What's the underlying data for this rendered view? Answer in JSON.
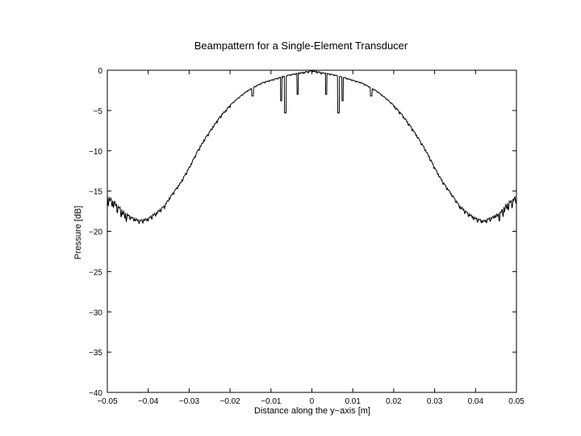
{
  "chart_data": {
    "type": "line",
    "title": "Beampattern for a Single-Element Transducer",
    "xlabel": "Distance along the y−axis [m]",
    "ylabel": "Pressure [dB]",
    "xlim": [
      -0.05,
      0.05
    ],
    "ylim": [
      -40,
      0
    ],
    "xticks": [
      -0.05,
      -0.04,
      -0.03,
      -0.02,
      -0.01,
      0,
      0.01,
      0.02,
      0.03,
      0.04,
      0.05
    ],
    "xtick_labels": [
      "−0.05",
      "−0.04",
      "−0.03",
      "−0.02",
      "−0.01",
      "0",
      "0.01",
      "0.02",
      "0.03",
      "0.04",
      "0.05"
    ],
    "yticks": [
      0,
      -5,
      -10,
      -15,
      -20,
      -25,
      -30,
      -35,
      -40
    ],
    "ytick_labels": [
      "0",
      "−5",
      "−10",
      "−15",
      "−20",
      "−25",
      "−30",
      "−35",
      "−40"
    ],
    "grid": false,
    "line_color": "#000000",
    "series": [
      {
        "x": [
          -0.05,
          -0.048,
          -0.046,
          -0.044,
          -0.042,
          -0.04,
          -0.038,
          -0.036,
          -0.034,
          -0.032,
          -0.03,
          -0.028,
          -0.026,
          -0.024,
          -0.022,
          -0.02,
          -0.018,
          -0.016,
          -0.014,
          -0.012,
          -0.01,
          -0.008,
          -0.006,
          -0.004,
          -0.002,
          0,
          0.002,
          0.004,
          0.006,
          0.008,
          0.01,
          0.012,
          0.014,
          0.016,
          0.018,
          0.02,
          0.022,
          0.024,
          0.026,
          0.028,
          0.03,
          0.032,
          0.034,
          0.036,
          0.038,
          0.04,
          0.042,
          0.044,
          0.046,
          0.048,
          0.05
        ],
        "y": [
          -15.5,
          -16.3,
          -17.5,
          -18.2,
          -18.6,
          -18.3,
          -17.6,
          -16.7,
          -15.2,
          -13.8,
          -12.0,
          -10.0,
          -8.3,
          -6.8,
          -5.4,
          -4.3,
          -3.4,
          -2.6,
          -2.0,
          -1.5,
          -1.2,
          -0.9,
          -0.6,
          -0.4,
          -0.2,
          0,
          -0.2,
          -0.4,
          -0.6,
          -0.9,
          -1.2,
          -1.5,
          -2.0,
          -2.6,
          -3.4,
          -4.3,
          -5.4,
          -6.8,
          -8.3,
          -10.0,
          -12.0,
          -13.8,
          -15.2,
          -16.7,
          -17.6,
          -18.3,
          -18.6,
          -18.2,
          -17.5,
          -16.3,
          -15.5
        ]
      }
    ]
  }
}
